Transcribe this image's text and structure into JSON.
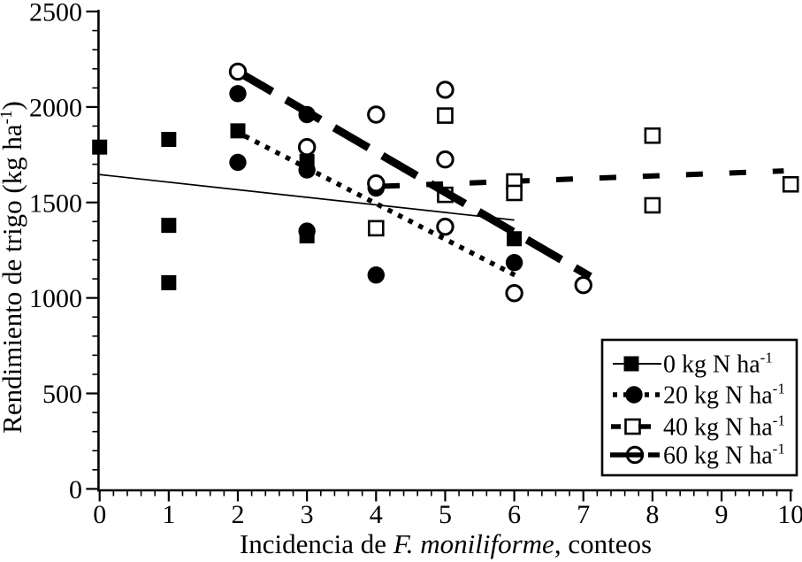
{
  "chart_data": {
    "type": "scatter",
    "title": "",
    "xlabel_parts": [
      {
        "text": "Incidencia de ",
        "italic": false
      },
      {
        "text": "F. moniliforme",
        "italic": true
      },
      {
        "text": ", conteos",
        "italic": false
      }
    ],
    "ylabel_parts": [
      {
        "text": "Rendimiento de trigo (kg ha",
        "sup": false
      },
      {
        "text": "-1",
        "sup": true
      },
      {
        "text": ")",
        "sup": false
      }
    ],
    "xlim": [
      0,
      10
    ],
    "ylim": [
      0,
      2500
    ],
    "x_ticks": {
      "major_step": 1,
      "minor_step": 0.2,
      "labels": [
        "0",
        "1",
        "2",
        "3",
        "4",
        "5",
        "6",
        "7",
        "8",
        "9",
        "10"
      ]
    },
    "y_ticks": {
      "major_step": 500,
      "minor_step": 100,
      "labels": [
        "0",
        "500",
        "1000",
        "1500",
        "2000",
        "2500"
      ]
    },
    "grid": false,
    "legend_position": "bottom-right",
    "colors": {
      "foreground": "#000000",
      "background": "#ffffff"
    },
    "series": [
      {
        "name": "0 kg N ha",
        "sup": "-1",
        "marker": "filled-square",
        "line_style": "solid-thin",
        "points": [
          [
            0,
            1790
          ],
          [
            1,
            1830
          ],
          [
            1,
            1380
          ],
          [
            1,
            1080
          ],
          [
            2,
            1875
          ],
          [
            3,
            1715
          ],
          [
            3,
            1325
          ],
          [
            6,
            1310
          ]
        ],
        "trend_line": {
          "x1": 0,
          "y1": 1646,
          "x2": 6,
          "y2": 1408
        }
      },
      {
        "name": "20 kg N ha",
        "sup": "-1",
        "marker": "filled-circle",
        "line_style": "dotted",
        "points": [
          [
            2,
            2070
          ],
          [
            2,
            1710
          ],
          [
            3,
            1960
          ],
          [
            3,
            1670
          ],
          [
            3,
            1350
          ],
          [
            4,
            1575
          ],
          [
            4,
            1120
          ],
          [
            6,
            1185
          ]
        ],
        "trend_line": {
          "x1": 2.1,
          "y1": 1848,
          "x2": 6.05,
          "y2": 1112
        }
      },
      {
        "name": "40 kg N ha",
        "sup": "-1",
        "marker": "open-square",
        "line_style": "dashed",
        "points": [
          [
            4,
            1365
          ],
          [
            5,
            1955
          ],
          [
            5,
            1540
          ],
          [
            6,
            1610
          ],
          [
            6,
            1550
          ],
          [
            8,
            1850
          ],
          [
            8,
            1485
          ],
          [
            10,
            1595
          ]
        ],
        "trend_line": {
          "x1": 4.1,
          "y1": 1585,
          "x2": 9.9,
          "y2": 1665
        }
      },
      {
        "name": "60 kg N ha",
        "sup": "-1",
        "marker": "open-circle",
        "line_style": "long-dash-thick",
        "points": [
          [
            2,
            2185
          ],
          [
            3,
            1790
          ],
          [
            4,
            1960
          ],
          [
            4,
            1600
          ],
          [
            5,
            2090
          ],
          [
            5,
            1725
          ],
          [
            5,
            1373
          ],
          [
            6,
            1025
          ],
          [
            7,
            1067
          ]
        ],
        "trend_line": {
          "x1": 2.0,
          "y1": 2185,
          "x2": 7.1,
          "y2": 1112
        }
      }
    ]
  }
}
